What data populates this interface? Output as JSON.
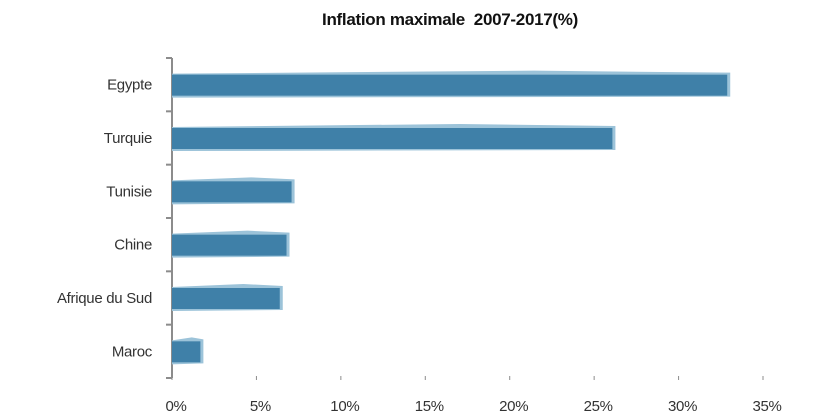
{
  "chart_data": {
    "type": "bar",
    "orientation": "horizontal",
    "title": "Inflation maximale  2007-2017(%)",
    "categories": [
      "Egypte",
      "Turquie",
      "Tunisie",
      "Chine",
      "Afrique du Sud",
      "Maroc"
    ],
    "values": [
      33.0,
      26.2,
      7.2,
      6.9,
      6.5,
      1.8
    ],
    "xlim": [
      0,
      35
    ],
    "xticks": [
      "0%",
      "5%",
      "10%",
      "15%",
      "20%",
      "25%",
      "30%",
      "35%"
    ],
    "xlabel": "",
    "ylabel": "",
    "grid": false,
    "bar_color": "#3f80a8",
    "bar_edge_color": "#9cc3d9",
    "axis_color": "#8c8c8c"
  }
}
